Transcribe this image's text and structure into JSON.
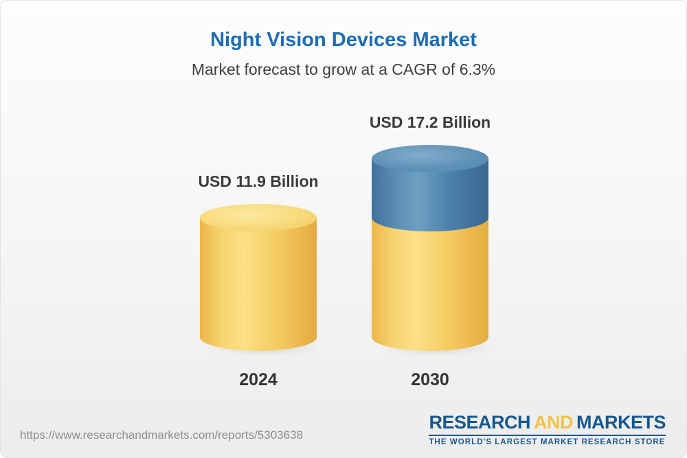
{
  "page": {
    "title": "Night Vision Devices Market",
    "subtitle": "Market forecast to grow at a CAGR of 6.3%",
    "source_url": "https://www.researchandmarkets.com/reports/5303638"
  },
  "chart_data": {
    "type": "bar",
    "variant": "3d-cylinder",
    "title": "Night Vision Devices Market",
    "subtitle": "Market forecast to grow at a CAGR of 6.3%",
    "unit": "USD Billion",
    "cagr_percent": 6.3,
    "categories": [
      "2024",
      "2030"
    ],
    "values": [
      11.9,
      17.2
    ],
    "growth_value": 5.3,
    "value_labels": [
      "USD 11.9 Billion",
      "USD 17.2 Billion"
    ],
    "ylim": [
      0,
      17.2
    ],
    "grid": false,
    "legend": false,
    "colors": {
      "base_segment": "#F3CC63",
      "growth_segment": "#49799F",
      "title": "#1E6CB3"
    }
  },
  "logo": {
    "part1": "RESEARCH",
    "part2": "AND",
    "part3": "MARKETS",
    "tagline": "THE WORLD'S LARGEST MARKET RESEARCH STORE",
    "colors": {
      "blue": "#16588F",
      "yellow": "#F1C24B"
    }
  }
}
